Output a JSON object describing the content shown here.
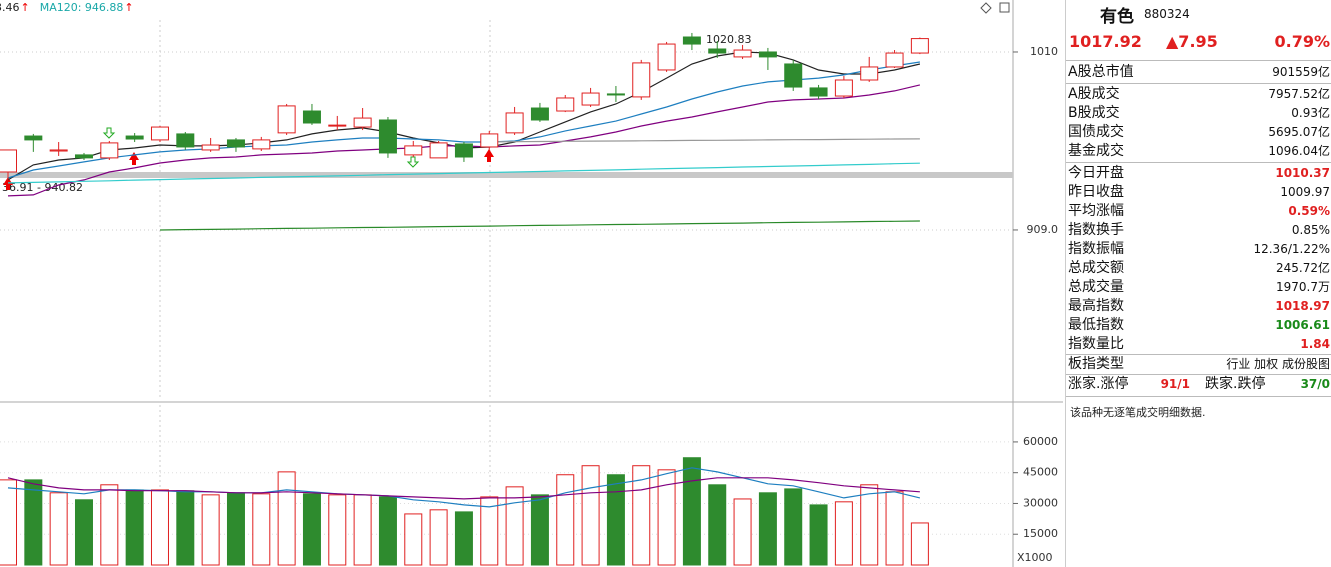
{
  "chart_data": {
    "type": "candlestick",
    "legend": [
      {
        "label": "3.46",
        "arrow": "↑",
        "color": "#222222"
      },
      {
        "label": "MA120: 946.88",
        "arrow": "↑",
        "color": "#1aa8a8"
      }
    ],
    "annotations": {
      "high": "1020.83",
      "range": "36.91 - 940.82"
    },
    "ylim": [
      812.5,
      1039.5
    ],
    "yticks": [
      {
        "value": 909,
        "label": "909.0"
      },
      1010
    ],
    "up_color": "#e02020",
    "down_color": "#2e8b2e",
    "open": [
      941.9,
      962.3,
      953.8,
      951.6,
      949.9,
      962.3,
      960.1,
      963.5,
      954.4,
      960.1,
      955.0,
      964.1,
      976.5,
      968.0,
      967.4,
      971.4,
      951.6,
      949.9,
      957.8,
      956.1,
      964.1,
      978.2,
      976.5,
      979.9,
      986.2,
      984.5,
      999.8,
      1018.5,
      1011.7,
      1007.2,
      1010.0,
      1003.2,
      989.6,
      985.0,
      994.1,
      1001.5,
      1009.4
    ],
    "high": [
      954.4,
      963.5,
      958.9,
      952.7,
      959.5,
      964.0,
      968.0,
      964.6,
      961.2,
      961.2,
      961.8,
      980.5,
      980.5,
      973.7,
      978.2,
      973.1,
      959.5,
      959.5,
      959.0,
      965.2,
      978.8,
      981.1,
      985.6,
      989.6,
      990.7,
      1005.5,
      1015.7,
      1020.8,
      1016.2,
      1014.0,
      1012.3,
      1005.5,
      991.3,
      996.4,
      1007.2,
      1011.1,
      1018.2
    ],
    "low": [
      937.4,
      953.3,
      951.0,
      948.7,
      948.7,
      958.9,
      958.9,
      954.4,
      953.3,
      953.3,
      953.8,
      962.9,
      968.6,
      965.7,
      965.7,
      949.9,
      950.4,
      949.9,
      947.6,
      954.4,
      962.9,
      970.3,
      975.9,
      978.8,
      981.6,
      982.8,
      998.7,
      1011.1,
      1006.6,
      1006.0,
      999.8,
      987.9,
      983.3,
      983.9,
      993.0,
      1000.9,
      1008.8
    ],
    "close": [
      954.4,
      960.1,
      954.4,
      949.9,
      958.4,
      960.6,
      967.4,
      956.1,
      957.2,
      956.1,
      960.1,
      979.4,
      969.7,
      968.5,
      972.5,
      952.7,
      956.7,
      958.4,
      950.4,
      963.5,
      975.4,
      971.4,
      983.9,
      986.7,
      985.6,
      1003.8,
      1014.5,
      1014.5,
      1009.4,
      1011.1,
      1007.2,
      990.1,
      985.0,
      994.1,
      1001.5,
      1009.4,
      1017.6
    ],
    "lines": [
      {
        "color": "#222222",
        "values": [
          937.4,
          945.9,
          948.7,
          949.9,
          954.4,
          955.5,
          957.2,
          956.7,
          956.7,
          957.2,
          958.4,
          960.1,
          963.5,
          965.7,
          966.9,
          964.6,
          961.2,
          958.4,
          955.5,
          956.1,
          958.9,
          964.6,
          970.3,
          976.0,
          980.5,
          987.3,
          995.2,
          1003.2,
          1007.7,
          1010.0,
          1009.4,
          1005.5,
          999.8,
          997.5,
          997.5,
          999.8,
          1003.2
        ]
      },
      {
        "color": "#1e7fc0",
        "values": [
          938.5,
          943.0,
          945.3,
          947.6,
          949.9,
          951.6,
          953.3,
          954.4,
          955.0,
          956.1,
          956.7,
          957.2,
          958.9,
          960.1,
          961.2,
          961.2,
          960.6,
          960.1,
          958.9,
          958.9,
          959.5,
          961.8,
          965.2,
          968.0,
          970.8,
          974.8,
          978.8,
          983.3,
          987.3,
          990.7,
          993.0,
          994.1,
          995.2,
          997.0,
          999.8,
          1002.1,
          1004.3
        ]
      },
      {
        "color": "#800080",
        "values": [
          928.3,
          928.9,
          934.5,
          937.4,
          941.9,
          944.2,
          947.0,
          948.7,
          949.9,
          950.4,
          951.6,
          952.1,
          952.7,
          953.8,
          954.4,
          955.0,
          955.5,
          956.7,
          956.7,
          956.1,
          956.7,
          957.2,
          959.5,
          961.8,
          964.6,
          968.0,
          970.8,
          973.1,
          976.0,
          978.8,
          981.6,
          982.8,
          983.3,
          983.9,
          985.6,
          987.9,
          991.3
        ]
      },
      {
        "color": "#999999",
        "values": [
          null,
          null,
          null,
          null,
          null,
          null,
          null,
          null,
          null,
          null,
          null,
          null,
          null,
          null,
          null,
          null,
          null,
          null,
          null,
          959.0,
          959.1,
          959.2,
          959.3,
          959.4,
          959.5,
          959.6,
          959.7,
          959.8,
          959.9,
          960.0,
          960.1,
          960.2,
          960.3,
          960.4,
          960.5,
          960.6,
          960.7
        ]
      },
      {
        "color": "#33cccc",
        "values": [
          935.7,
          936.0,
          936.3,
          936.6,
          936.9,
          937.3,
          937.6,
          937.9,
          938.2,
          938.5,
          938.8,
          939.1,
          939.4,
          939.7,
          940.0,
          940.4,
          940.7,
          941.0,
          941.3,
          941.6,
          941.9,
          942.2,
          942.5,
          942.8,
          943.1,
          943.5,
          943.8,
          944.1,
          944.4,
          944.7,
          945.0,
          945.3,
          945.6,
          945.9,
          946.2,
          946.6,
          946.9
        ]
      },
      {
        "color": "#2a8a2a",
        "values": [
          null,
          null,
          null,
          null,
          null,
          null,
          909.0,
          909.2,
          909.3,
          909.5,
          909.7,
          909.9,
          910.0,
          910.2,
          910.4,
          910.5,
          910.7,
          910.9,
          911.0,
          911.2,
          911.4,
          911.6,
          911.7,
          911.9,
          912.1,
          912.2,
          912.4,
          912.6,
          912.7,
          912.9,
          913.1,
          913.3,
          913.4,
          913.6,
          913.8,
          913.9,
          914.1
        ]
      }
    ],
    "volume": {
      "ylim": [
        0,
        78000
      ],
      "yticks": [
        15000,
        30000,
        45000,
        60000
      ],
      "multiplier": "X1000",
      "values": [
        41500,
        41500,
        35200,
        31800,
        39100,
        36600,
        36600,
        36200,
        34200,
        35200,
        34700,
        45400,
        34700,
        34200,
        34200,
        33200,
        24900,
        26900,
        25900,
        33200,
        38100,
        34200,
        44000,
        48400,
        44000,
        48400,
        46400,
        52300,
        39100,
        32200,
        35200,
        37100,
        29300,
        30800,
        39100,
        35700,
        20500
      ],
      "lines": [
        {
          "color": "#1e7fc0",
          "values": [
            37600,
            36600,
            35700,
            34700,
            36600,
            36600,
            36200,
            35700,
            35700,
            35200,
            35200,
            36600,
            35700,
            34700,
            34200,
            33700,
            31800,
            30800,
            29300,
            28300,
            30300,
            31800,
            35200,
            37600,
            39600,
            41500,
            44500,
            47400,
            45400,
            42500,
            39600,
            38600,
            35700,
            32700,
            34700,
            35700,
            32700
          ]
        },
        {
          "color": "#800080",
          "values": [
            42500,
            39600,
            37600,
            36600,
            36600,
            36200,
            36200,
            36200,
            35700,
            35200,
            35200,
            35700,
            35200,
            34700,
            34200,
            33700,
            33200,
            32700,
            32200,
            32700,
            32700,
            33200,
            34200,
            35200,
            35700,
            36600,
            39100,
            41000,
            42500,
            42500,
            42500,
            41500,
            40100,
            38600,
            37600,
            36600,
            35700
          ]
        }
      ]
    }
  },
  "quote": {
    "name": "有色",
    "code": "880324",
    "price": "1017.92",
    "change": "▲7.95",
    "change_pct": "0.79%"
  },
  "stats": [
    {
      "label": "A股总市值",
      "value": "901559亿"
    },
    {
      "label": "A股成交",
      "value": "7957.52亿"
    },
    {
      "label": "B股成交",
      "value": "0.93亿"
    },
    {
      "label": "国债成交",
      "value": "5695.07亿"
    },
    {
      "label": "基金成交",
      "value": "1096.04亿"
    },
    {
      "label": "今日开盘",
      "value": "1010.37"
    },
    {
      "label": "昨日收盘",
      "value": "1009.97"
    },
    {
      "label": "平均涨幅",
      "value": "0.59%"
    },
    {
      "label": "指数换手",
      "value": "0.85%"
    },
    {
      "label": "指数振幅",
      "value": "12.36/1.22%"
    },
    {
      "label": "总成交额",
      "value": "245.72亿"
    },
    {
      "label": "总成交量",
      "value": "1970.7万"
    },
    {
      "label": "最高指数",
      "value": "1018.97"
    },
    {
      "label": "最低指数",
      "value": "1006.61"
    },
    {
      "label": "指数量比",
      "value": "1.84"
    },
    {
      "label": "板指类型",
      "value": "行业 加权 成份股图"
    }
  ],
  "breadth": {
    "up_label": "涨家.涨停",
    "up": "91/1",
    "down_label": "跌家.跌停",
    "down": "37/0"
  },
  "note": "该品种无逐笔成交明细数据."
}
